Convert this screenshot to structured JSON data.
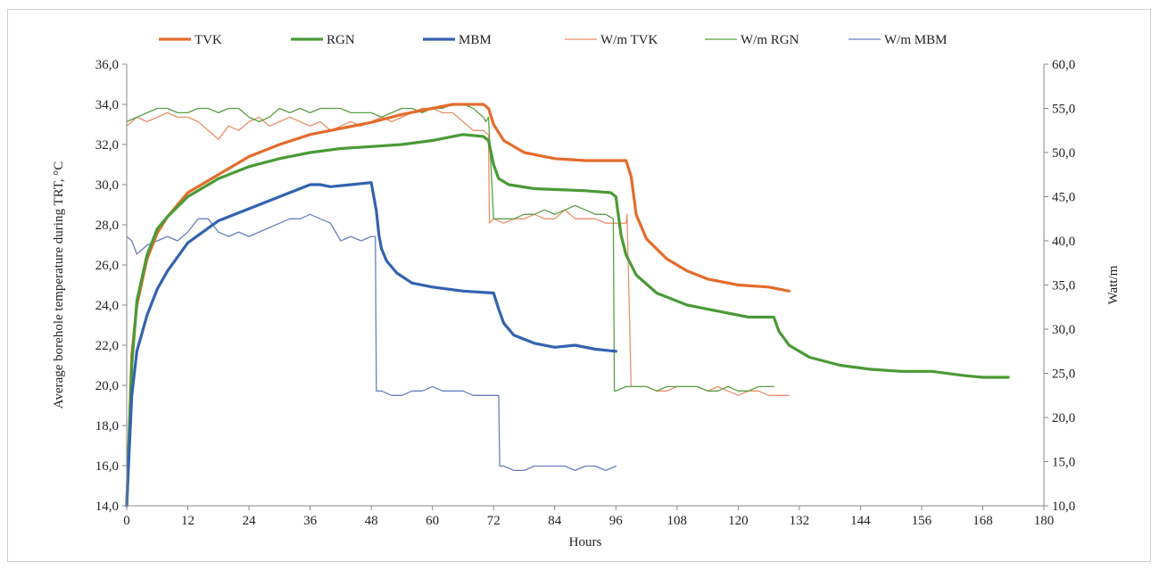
{
  "chart_data": {
    "type": "line",
    "xlabel": "Hours",
    "ylabel": "Average borehole temperature during TRT, °C",
    "y2label": "Watt/m",
    "xlim": [
      0,
      180
    ],
    "ylim": [
      14,
      36
    ],
    "y2lim": [
      10,
      60
    ],
    "x_ticks": [
      "0",
      "12",
      "24",
      "36",
      "48",
      "60",
      "72",
      "84",
      "96",
      "108",
      "120",
      "132",
      "144",
      "156",
      "168",
      "180"
    ],
    "y_ticks": [
      "14,0",
      "16,0",
      "18,0",
      "20,0",
      "22,0",
      "24,0",
      "26,0",
      "28,0",
      "30,0",
      "32,0",
      "34,0",
      "36,0"
    ],
    "y2_ticks": [
      "10,0",
      "15,0",
      "20,0",
      "25,0",
      "30,0",
      "35,0",
      "40,0",
      "45,0",
      "50,0",
      "55,0",
      "60,0"
    ],
    "legend_position": "top",
    "grid": false,
    "series": [
      {
        "name": "TVK",
        "axis": "left",
        "color": "#e36c2c",
        "width": 3.2,
        "x": [
          0,
          1,
          2,
          4,
          6,
          8,
          12,
          18,
          24,
          30,
          36,
          42,
          48,
          54,
          60,
          64,
          66,
          70,
          71,
          72,
          74,
          78,
          84,
          90,
          96,
          98,
          99,
          100,
          102,
          106,
          110,
          114,
          120,
          126,
          130
        ],
        "y": [
          14.0,
          21.5,
          24.0,
          26.3,
          27.6,
          28.4,
          29.6,
          30.5,
          31.4,
          32.0,
          32.5,
          32.8,
          33.1,
          33.5,
          33.8,
          34.0,
          34.0,
          34.0,
          33.8,
          33.0,
          32.2,
          31.6,
          31.3,
          31.2,
          31.2,
          31.2,
          30.4,
          28.5,
          27.3,
          26.3,
          25.7,
          25.3,
          25.0,
          24.9,
          24.7
        ]
      },
      {
        "name": "RGN",
        "axis": "left",
        "color": "#4a9a36",
        "width": 3.2,
        "x": [
          0,
          1,
          2,
          4,
          6,
          8,
          12,
          18,
          24,
          30,
          36,
          42,
          48,
          54,
          60,
          66,
          70,
          71,
          72,
          73,
          75,
          80,
          90,
          95,
          96,
          97,
          98,
          100,
          104,
          110,
          116,
          122,
          127,
          128,
          130,
          134,
          140,
          146,
          152,
          158,
          164,
          168,
          173
        ],
        "y": [
          14.0,
          21.0,
          24.2,
          26.5,
          27.8,
          28.4,
          29.4,
          30.3,
          30.9,
          31.3,
          31.6,
          31.8,
          31.9,
          32.0,
          32.2,
          32.5,
          32.4,
          32.2,
          31.0,
          30.3,
          30.0,
          29.8,
          29.7,
          29.6,
          29.4,
          27.5,
          26.5,
          25.5,
          24.6,
          24.0,
          23.7,
          23.4,
          23.4,
          22.7,
          22.0,
          21.4,
          21.0,
          20.8,
          20.7,
          20.7,
          20.5,
          20.4,
          20.4
        ]
      },
      {
        "name": "MBM",
        "axis": "left",
        "color": "#3363b0",
        "width": 3.2,
        "x": [
          0,
          1,
          2,
          4,
          6,
          8,
          12,
          18,
          24,
          30,
          36,
          38,
          40,
          44,
          48,
          49,
          49.5,
          50,
          51,
          53,
          56,
          60,
          66,
          72,
          73,
          74,
          76,
          80,
          84,
          88,
          92,
          96
        ],
        "y": [
          14.0,
          19.5,
          21.7,
          23.5,
          24.8,
          25.7,
          27.1,
          28.2,
          28.8,
          29.4,
          30.0,
          30.0,
          29.9,
          30.0,
          30.1,
          28.7,
          27.5,
          26.8,
          26.2,
          25.6,
          25.1,
          24.9,
          24.7,
          24.6,
          23.8,
          23.1,
          22.5,
          22.1,
          21.9,
          22.0,
          21.8,
          21.7
        ]
      },
      {
        "name": "W/m TVK",
        "axis": "right",
        "color": "#e8906a",
        "width": 1.3,
        "x": [
          0,
          2,
          4,
          6,
          8,
          10,
          12,
          14,
          16,
          18,
          20,
          22,
          24,
          26,
          28,
          30,
          32,
          34,
          36,
          38,
          40,
          42,
          44,
          46,
          48,
          50,
          52,
          54,
          56,
          58,
          60,
          62,
          64,
          66,
          68,
          70,
          71,
          71.2,
          72,
          74,
          76,
          78,
          80,
          82,
          84,
          86,
          88,
          90,
          92,
          94,
          96,
          98,
          98.2,
          99,
          100,
          102,
          104,
          106,
          108,
          110,
          112,
          114,
          116,
          118,
          120,
          122,
          124,
          126,
          128,
          130
        ],
        "y": [
          53,
          54,
          53.5,
          54,
          54.5,
          54,
          54,
          53.5,
          52.5,
          51.5,
          53,
          52.5,
          53.5,
          54,
          53,
          53.5,
          54,
          53.5,
          53,
          53.5,
          52.5,
          53,
          53.5,
          53,
          53.5,
          54,
          53.5,
          54,
          54.5,
          55,
          55,
          54.5,
          54.5,
          53.5,
          52.5,
          52.5,
          52,
          42,
          42.5,
          42,
          42.5,
          42.5,
          43,
          42.5,
          42.5,
          43.5,
          42.5,
          42.5,
          42.5,
          42,
          42,
          42,
          43,
          23.5,
          23.5,
          23.5,
          23,
          23,
          23.5,
          23.5,
          23.5,
          23,
          23.5,
          23,
          22.5,
          23,
          23,
          22.5,
          22.5,
          22.5
        ]
      },
      {
        "name": "W/m RGN",
        "axis": "right",
        "color": "#5a9e46",
        "width": 1.3,
        "x": [
          0,
          2,
          4,
          6,
          8,
          10,
          12,
          14,
          16,
          18,
          20,
          22,
          24,
          26,
          28,
          30,
          32,
          34,
          36,
          38,
          40,
          42,
          44,
          46,
          48,
          50,
          52,
          54,
          56,
          58,
          60,
          62,
          64,
          66,
          68,
          70,
          70.5,
          71,
          72,
          74,
          76,
          78,
          80,
          82,
          84,
          86,
          88,
          90,
          92,
          94,
          95.5,
          95.7,
          96,
          98,
          100,
          102,
          104,
          106,
          108,
          110,
          112,
          114,
          116,
          118,
          120,
          122,
          124,
          126,
          127
        ],
        "y": [
          53.5,
          54,
          54.5,
          55,
          55,
          54.5,
          54.5,
          55,
          55,
          54.5,
          55,
          55,
          54,
          53.5,
          54,
          55,
          54.5,
          55,
          54.5,
          55,
          55,
          55,
          54.5,
          54.5,
          54.5,
          54,
          54.5,
          55,
          55,
          54.5,
          55,
          55,
          55.5,
          55.5,
          55,
          54,
          53.5,
          54,
          42.5,
          42.5,
          42.5,
          43,
          43,
          43.5,
          43,
          43.5,
          44,
          43.5,
          43,
          43,
          42.5,
          23,
          23,
          23.5,
          23.5,
          23.5,
          23,
          23.5,
          23.5,
          23.5,
          23.5,
          23,
          23,
          23.5,
          23,
          23,
          23.5,
          23.5,
          23.5
        ]
      },
      {
        "name": "W/m MBM",
        "axis": "right",
        "color": "#6b7fc0",
        "width": 1.3,
        "x": [
          0,
          1,
          2,
          3,
          4,
          6,
          8,
          10,
          12,
          14,
          16,
          18,
          20,
          22,
          24,
          26,
          28,
          30,
          32,
          34,
          36,
          38,
          40,
          42,
          44,
          46,
          48,
          48.8,
          49,
          50,
          52,
          54,
          56,
          58,
          60,
          62,
          64,
          66,
          68,
          70,
          72,
          73,
          73.2,
          74,
          76,
          78,
          80,
          82,
          84,
          86,
          88,
          90,
          92,
          94,
          96
        ],
        "y": [
          40.5,
          40,
          38.5,
          39,
          39.5,
          40,
          40.5,
          40,
          41,
          42.5,
          42.5,
          41,
          40.5,
          41,
          40.5,
          41,
          41.5,
          42,
          42.5,
          42.5,
          43,
          42.5,
          42,
          40,
          40.5,
          40,
          40.5,
          40.5,
          23,
          23,
          22.5,
          22.5,
          23,
          23,
          23.5,
          23,
          23,
          23,
          22.5,
          22.5,
          22.5,
          22.5,
          14.5,
          14.5,
          14,
          14,
          14.5,
          14.5,
          14.5,
          14.5,
          14,
          14.5,
          14.5,
          14,
          14.5
        ]
      }
    ]
  }
}
